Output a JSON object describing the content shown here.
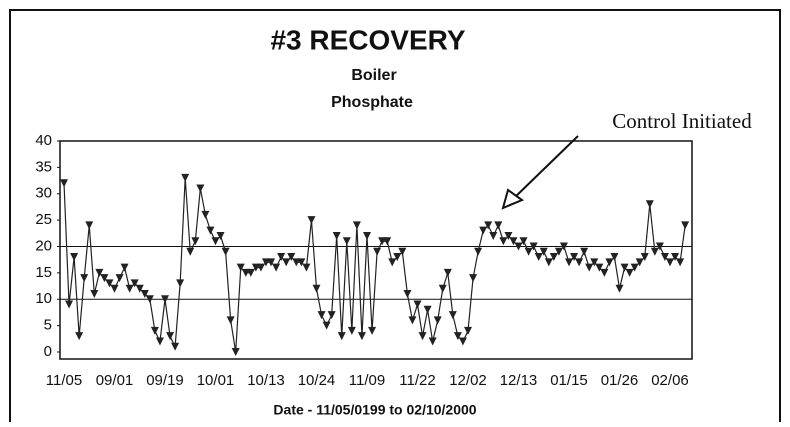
{
  "chart_data": {
    "type": "line",
    "title": "#3 RECOVERY",
    "subtitle": [
      "Boiler",
      "Phosphate"
    ],
    "x_label": "Date - 11/05/0199 to 02/10/2000",
    "annotation": "Control Initiated",
    "categories": [
      "11/05",
      null,
      null,
      null,
      null,
      null,
      null,
      null,
      null,
      null,
      "09/01",
      null,
      null,
      null,
      null,
      null,
      null,
      null,
      null,
      null,
      "09/19",
      null,
      null,
      null,
      null,
      null,
      null,
      null,
      null,
      null,
      "10/01",
      null,
      null,
      null,
      null,
      null,
      null,
      null,
      null,
      null,
      "10/13",
      null,
      null,
      null,
      null,
      null,
      null,
      null,
      null,
      null,
      "10/24",
      null,
      null,
      null,
      null,
      null,
      null,
      null,
      null,
      null,
      "11/09",
      null,
      null,
      null,
      null,
      null,
      null,
      null,
      null,
      null,
      "11/22",
      null,
      null,
      null,
      null,
      null,
      null,
      null,
      null,
      null,
      "12/02",
      null,
      null,
      null,
      null,
      null,
      null,
      null,
      null,
      null,
      "12/13",
      null,
      null,
      null,
      null,
      null,
      null,
      null,
      null,
      null,
      "01/15",
      null,
      null,
      null,
      null,
      null,
      null,
      null,
      null,
      null,
      "01/26",
      null,
      null,
      null,
      null,
      null,
      null,
      null,
      null,
      null,
      "02/06",
      null,
      null,
      null
    ],
    "values": [
      32,
      9,
      18,
      3,
      14,
      24,
      11,
      15,
      14,
      13,
      12,
      14,
      16,
      12,
      13,
      12,
      11,
      10,
      4,
      2,
      10,
      3,
      1,
      13,
      33,
      19,
      21,
      31,
      26,
      23,
      21,
      22,
      19,
      6,
      0,
      16,
      15,
      15,
      16,
      16,
      17,
      17,
      16,
      18,
      17,
      18,
      17,
      17,
      16,
      25,
      12,
      7,
      5,
      7,
      22,
      3,
      21,
      4,
      24,
      3,
      22,
      4,
      19,
      21,
      21,
      17,
      18,
      19,
      11,
      6,
      9,
      3,
      8,
      2,
      6,
      12,
      15,
      7,
      3,
      2,
      4,
      14,
      19,
      23,
      24,
      22,
      24,
      21,
      22,
      21,
      20,
      21,
      19,
      20,
      18,
      19,
      17,
      18,
      19,
      20,
      17,
      18,
      17,
      19,
      16,
      17,
      16,
      15,
      17,
      18,
      12,
      16,
      15,
      16,
      17,
      18,
      28,
      19,
      20,
      18,
      17,
      18,
      17,
      24
    ],
    "color": "#222222",
    "ylim": [
      0,
      40
    ],
    "yticks": [
      0,
      5,
      10,
      15,
      20,
      25,
      30,
      35,
      40
    ],
    "hlines": [
      10,
      20
    ]
  }
}
